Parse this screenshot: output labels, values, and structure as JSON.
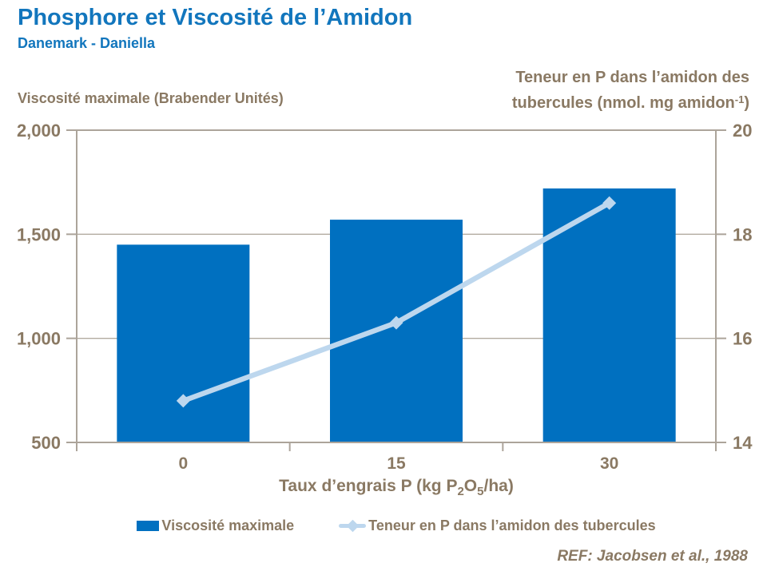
{
  "header": {
    "title": "Phosphore et Viscosité de l’Amidon",
    "subtitle": "Danemark - Daniella"
  },
  "left_axis_title": "Viscosité maximale (Brabender Unités)",
  "right_axis_title": {
    "line1": "Teneur en P dans l’amidon des",
    "line2_pre": "tubercules (nmol. mg amidon",
    "line2_sup": "-1",
    "line2_post": ")"
  },
  "x_axis_title": {
    "p1": "Taux d’engrais P (kg P",
    "sub1": "2",
    "p2": "O",
    "sub2": "5",
    "p3": "/ha)"
  },
  "legend": [
    {
      "label": "Viscosité maximale",
      "swatch": "bar",
      "color": "#0070C0"
    },
    {
      "label": "Teneur en P dans l’amidon des tubercules",
      "swatch": "line-diamond",
      "color": "#BDD7EE"
    }
  ],
  "reference": "REF: Jacobsen et al., 1988",
  "colors": {
    "title_blue": "#1276BD",
    "bar_blue": "#0070C0",
    "line_blue": "#BDD7EE",
    "text_taupe": "#8A7963",
    "axis_line": "#ACA49A",
    "gridline": "#B3ABA0"
  },
  "chart_data": {
    "type": "combo-bar-line",
    "title": "Phosphore et Viscosité de l’Amidon — Danemark - Daniella",
    "categories": [
      "0",
      "15",
      "30"
    ],
    "series": [
      {
        "name": "Viscosité maximale",
        "type": "bar",
        "axis": "left",
        "color": "#0070C0",
        "values": [
          1450,
          1570,
          1720
        ]
      },
      {
        "name": "Teneur en P dans l’amidon des tubercules",
        "type": "line",
        "axis": "right",
        "color": "#BDD7EE",
        "marker": "diamond",
        "values": [
          14.8,
          16.3,
          18.6
        ]
      }
    ],
    "left_axis": {
      "label": "Viscosité maximale (Brabender Unités)",
      "min": 500,
      "max": 2000,
      "ticks": [
        {
          "value": 500,
          "label": "500"
        },
        {
          "value": 1000,
          "label": "1,000"
        },
        {
          "value": 1500,
          "label": "1,500"
        },
        {
          "value": 2000,
          "label": "2,000"
        }
      ]
    },
    "right_axis": {
      "label": "Teneur en P dans l’amidon des tubercules (nmol. mg amidon-1)",
      "min": 14,
      "max": 20,
      "ticks": [
        {
          "value": 14,
          "label": "14"
        },
        {
          "value": 16,
          "label": "16"
        },
        {
          "value": 18,
          "label": "18"
        },
        {
          "value": 20,
          "label": "20"
        }
      ]
    },
    "x_axis": {
      "label": "Taux d’engrais P (kg P2O5/ha)"
    },
    "gridlines": "horizontal-interior",
    "legend_position": "bottom"
  }
}
